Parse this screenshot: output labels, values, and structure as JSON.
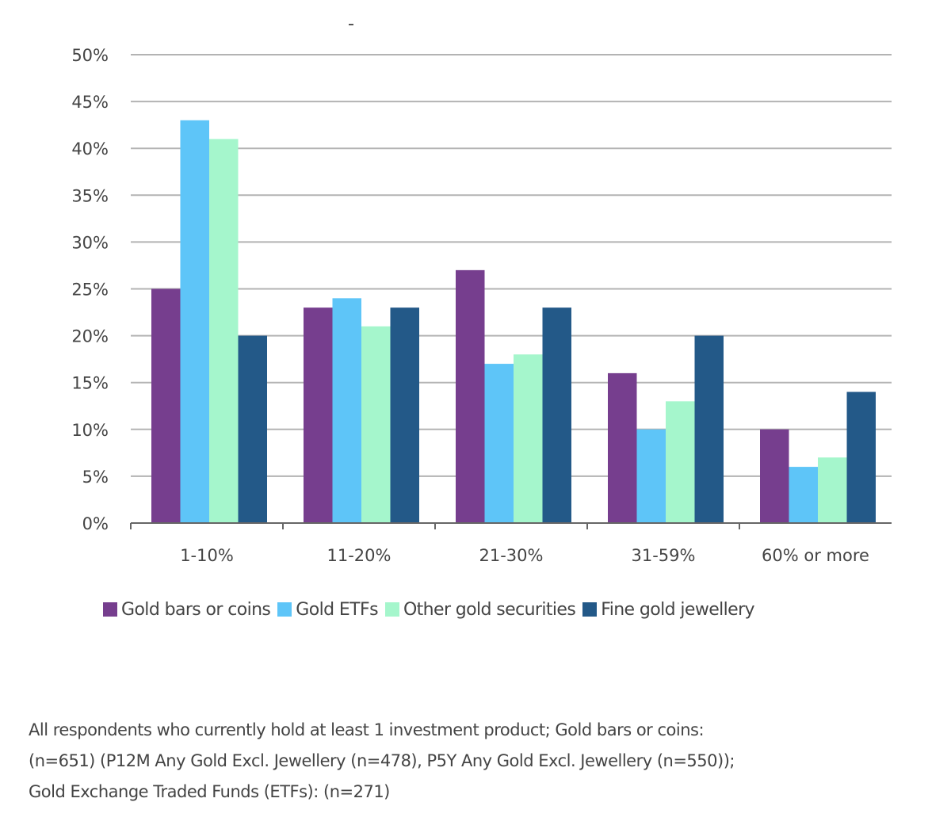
{
  "chart_data": {
    "type": "bar",
    "title": "",
    "xlabel": "",
    "ylabel": "",
    "ylim": [
      0,
      50
    ],
    "yticks": [
      "0%",
      "5%",
      "10%",
      "15%",
      "20%",
      "25%",
      "30%",
      "35%",
      "40%",
      "45%",
      "50%"
    ],
    "ytick_values": [
      0,
      5,
      10,
      15,
      20,
      25,
      30,
      35,
      40,
      45,
      50
    ],
    "grid": true,
    "legend_position": "bottom",
    "categories": [
      "1-10%",
      "11-20%",
      "21-30%",
      "31-59%",
      "60% or more"
    ],
    "series": [
      {
        "name": "Gold bars or coins",
        "color": "#763e8e",
        "values": [
          25,
          23,
          27,
          16,
          10
        ]
      },
      {
        "name": "Gold ETFs",
        "color": "#5ec5f8",
        "values": [
          43,
          24,
          17,
          10,
          6
        ]
      },
      {
        "name": "Other gold securities",
        "color": "#a5f6cc",
        "values": [
          41,
          21,
          18,
          13,
          7
        ]
      },
      {
        "name": "Fine gold jewellery",
        "color": "#235988",
        "values": [
          20,
          23,
          23,
          20,
          14
        ]
      }
    ]
  },
  "footnote": {
    "lines": [
      "All respondents who currently hold at least 1 investment product; Gold bars or coins:",
      "(n=651) (P12M Any Gold Excl. Jewellery (n=478), P5Y Any Gold Excl. Jewellery (n=550));",
      "Gold Exchange Traded Funds (ETFs): (n=271)"
    ]
  }
}
